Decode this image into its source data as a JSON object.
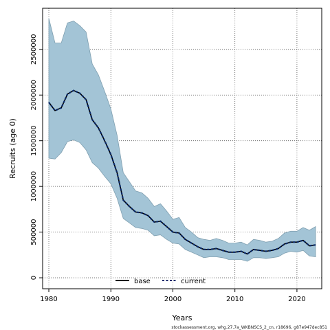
{
  "chart_data": {
    "type": "line",
    "xlabel": "Years",
    "ylabel": "Recruits (age 0)",
    "xlim": [
      1979,
      2024
    ],
    "ylim": [
      -120000,
      2950000
    ],
    "x_ticks": [
      1980,
      1990,
      2000,
      2010,
      2020
    ],
    "y_ticks": [
      0,
      500000,
      1000000,
      1500000,
      2000000,
      2500000
    ],
    "grid": true,
    "legend_position": "bottom-center",
    "legend": [
      {
        "name": "base",
        "style": "solid",
        "color": "#000000"
      },
      {
        "name": "current",
        "style": "dashed",
        "color": "#0a2a6b"
      }
    ],
    "band_color": "#a3c4d6",
    "band_edge_color": "#7f9fb0",
    "x": [
      1980,
      1981,
      1982,
      1983,
      1984,
      1985,
      1986,
      1987,
      1988,
      1989,
      1990,
      1991,
      1992,
      1993,
      1994,
      1995,
      1996,
      1997,
      1998,
      1999,
      2000,
      2001,
      2002,
      2003,
      2004,
      2005,
      2006,
      2007,
      2008,
      2009,
      2010,
      2011,
      2012,
      2013,
      2014,
      2015,
      2016,
      2017,
      2018,
      2019,
      2020,
      2021,
      2022,
      2023
    ],
    "series": [
      {
        "name": "current",
        "values": [
          1920000,
          1830000,
          1860000,
          2010000,
          2050000,
          2020000,
          1950000,
          1730000,
          1640000,
          1500000,
          1350000,
          1150000,
          850000,
          780000,
          720000,
          710000,
          680000,
          610000,
          620000,
          560000,
          500000,
          490000,
          420000,
          380000,
          340000,
          310000,
          310000,
          320000,
          300000,
          280000,
          280000,
          290000,
          260000,
          310000,
          300000,
          290000,
          300000,
          320000,
          370000,
          390000,
          390000,
          410000,
          350000,
          360000
        ]
      },
      {
        "name": "base",
        "values": [
          1920000,
          1830000,
          1860000,
          2010000,
          2050000,
          2020000,
          1950000,
          1730000,
          1640000,
          1500000,
          1350000,
          1150000,
          850000,
          780000,
          720000,
          710000,
          680000,
          610000,
          620000,
          560000,
          500000,
          490000,
          420000,
          380000,
          340000,
          310000,
          310000,
          320000,
          300000,
          280000,
          280000,
          290000,
          260000,
          310000,
          300000,
          290000,
          300000,
          320000,
          370000,
          390000,
          390000,
          410000,
          350000,
          360000
        ]
      }
    ],
    "band_upper": [
      2840000,
      2570000,
      2570000,
      2790000,
      2810000,
      2760000,
      2690000,
      2340000,
      2220000,
      2040000,
      1850000,
      1560000,
      1150000,
      1050000,
      950000,
      930000,
      870000,
      780000,
      810000,
      730000,
      640000,
      660000,
      550000,
      500000,
      440000,
      420000,
      410000,
      430000,
      410000,
      380000,
      380000,
      390000,
      360000,
      420000,
      410000,
      390000,
      400000,
      430000,
      490000,
      510000,
      510000,
      550000,
      520000,
      560000
    ],
    "band_lower": [
      1310000,
      1300000,
      1370000,
      1490000,
      1510000,
      1480000,
      1400000,
      1260000,
      1200000,
      1110000,
      1030000,
      870000,
      650000,
      600000,
      550000,
      540000,
      520000,
      460000,
      470000,
      420000,
      380000,
      370000,
      310000,
      280000,
      250000,
      220000,
      230000,
      230000,
      220000,
      200000,
      200000,
      200000,
      180000,
      220000,
      220000,
      210000,
      220000,
      230000,
      270000,
      290000,
      280000,
      300000,
      240000,
      230000
    ]
  },
  "footer_text": "stockassessment.org, whg.27.7a_WKBNSCS_2_cn, r18696, g87e947dec851"
}
